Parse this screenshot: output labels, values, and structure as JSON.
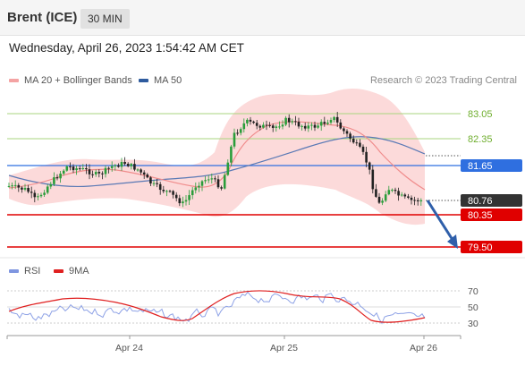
{
  "header": {
    "title": "Brent (ICE)",
    "timeframe": "30 MIN"
  },
  "timestamp": "Wednesday, April 26, 2023 1:54:42 AM CET",
  "legend_main": [
    {
      "label": "MA 20 + Bollinger Bands",
      "color": "#f4a3a3"
    },
    {
      "label": "MA 50",
      "color": "#2e5b9e"
    }
  ],
  "credit": "Research © 2023 Trading Central",
  "legend_rsi": [
    {
      "label": "RSI",
      "color": "#7f96e0"
    },
    {
      "label": "9MA",
      "color": "#e02020"
    }
  ],
  "levels": [
    {
      "value": "83.05",
      "kind": "resistance-minor",
      "color": "#8ec55b"
    },
    {
      "value": "82.35",
      "kind": "resistance-minor",
      "color": "#8ec55b"
    },
    {
      "value": "81.65",
      "kind": "pivot",
      "color": "#2f6fe0"
    },
    {
      "value": "80.76",
      "kind": "last-price",
      "color": "#333333"
    },
    {
      "value": "80.35",
      "kind": "support",
      "color": "#e00000"
    },
    {
      "value": "79.50",
      "kind": "support",
      "color": "#e00000"
    }
  ],
  "rsi_axis": {
    "ticks": [
      "70",
      "50",
      "30"
    ]
  },
  "x_axis": {
    "ticks": [
      "Apr 24",
      "Apr 25",
      "Apr 26"
    ]
  },
  "colors": {
    "up": "#2a9d3a",
    "down": "#222222",
    "arrow": "#2f5faa",
    "band": "#fbd0d0"
  }
}
